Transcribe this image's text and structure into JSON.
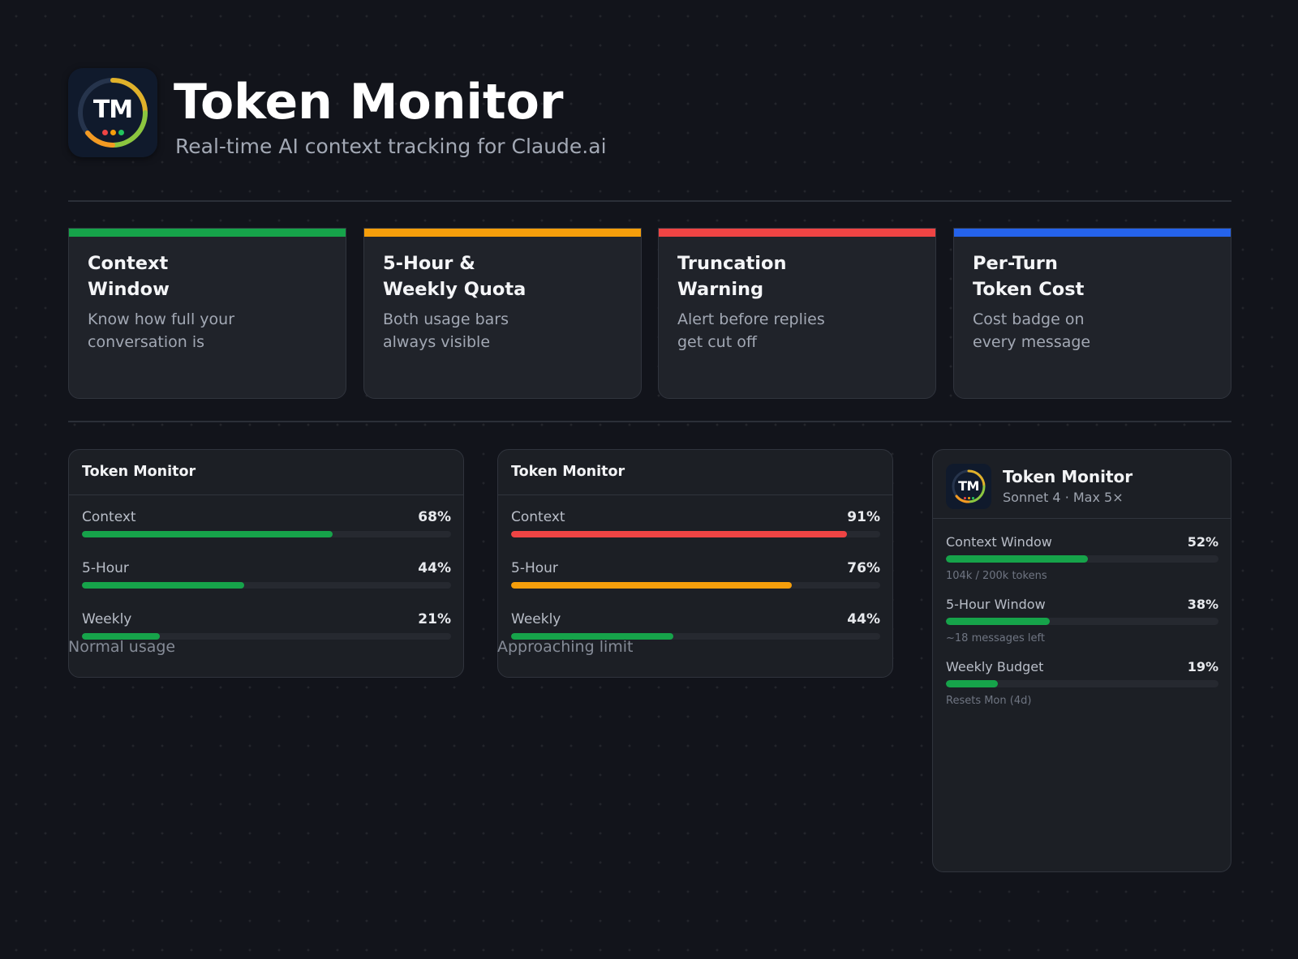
{
  "header": {
    "logo_text": "TM",
    "title": "Token Monitor",
    "subtitle": "Real-time AI context tracking for Claude.ai"
  },
  "colors": {
    "green": "#16a34a",
    "orange": "#f59e0b",
    "red": "#ef4444",
    "blue": "#2563eb"
  },
  "features": [
    {
      "title": "Context\nWindow",
      "description": "Know how full your\nconversation is",
      "accent": "#16a34a"
    },
    {
      "title": "5-Hour &\nWeekly Quota",
      "description": "Both usage bars\nalways visible",
      "accent": "#f59e0b"
    },
    {
      "title": "Truncation\nWarning",
      "description": "Alert before replies\nget cut off",
      "accent": "#ef4444"
    },
    {
      "title": "Per-Turn\nToken Cost",
      "description": "Cost badge on\nevery message",
      "accent": "#2563eb"
    }
  ],
  "widgets": [
    {
      "title": "Token Monitor",
      "caption": "Normal usage",
      "metrics": [
        {
          "label": "Context",
          "value": "68%",
          "percent": 68,
          "color": "#16a34a"
        },
        {
          "label": "5-Hour",
          "value": "44%",
          "percent": 44,
          "color": "#16a34a"
        },
        {
          "label": "Weekly",
          "value": "21%",
          "percent": 21,
          "color": "#16a34a"
        }
      ]
    },
    {
      "title": "Token Monitor",
      "caption": "Approaching limit",
      "metrics": [
        {
          "label": "Context",
          "value": "91%",
          "percent": 91,
          "color": "#ef4444"
        },
        {
          "label": "5-Hour",
          "value": "76%",
          "percent": 76,
          "color": "#f59e0b"
        },
        {
          "label": "Weekly",
          "value": "44%",
          "percent": 44,
          "color": "#16a34a"
        }
      ]
    }
  ],
  "detailed": {
    "logo_text": "TM",
    "title": "Token Monitor",
    "meta": "Sonnet 4 · Max 5×",
    "metrics": [
      {
        "label": "Context Window",
        "value": "52%",
        "percent": 52,
        "sub": "104k / 200k tokens",
        "color": "#16a34a"
      },
      {
        "label": "5-Hour Window",
        "value": "38%",
        "percent": 38,
        "sub": "~18 messages left",
        "color": "#16a34a"
      },
      {
        "label": "Weekly Budget",
        "value": "19%",
        "percent": 19,
        "sub": "Resets Mon (4d)",
        "color": "#16a34a"
      }
    ]
  }
}
